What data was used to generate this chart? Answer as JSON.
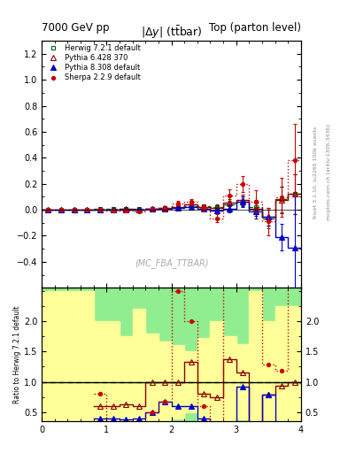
{
  "title_left": "7000 GeV pp",
  "title_right": "Top (parton level)",
  "ylabel_ratio": "Ratio to Herwig 7.2.1 default",
  "main_title": "|\\u0394y| (t\\u0305tbar)",
  "watermark": "(MC_FBA_TTBAR)",
  "right_label": "Rivet 3.1.10, \\u2265 100k events",
  "right_label2": "mcplots.cern.ch [arXiv:1306.3436]",
  "ylim_main": [
    -0.6,
    1.3
  ],
  "ylim_ratio": [
    0.35,
    2.55
  ],
  "xlim": [
    0.0,
    4.0
  ],
  "xticks": [
    0,
    1,
    2,
    3,
    4
  ],
  "yticks_main": [
    -0.4,
    -0.2,
    0.0,
    0.2,
    0.4,
    0.6,
    0.8,
    1.0,
    1.2
  ],
  "yticks_ratio": [
    0.5,
    1.0,
    1.5,
    2.0
  ],
  "bin_edges": [
    0.0,
    0.2,
    0.4,
    0.6,
    0.8,
    1.0,
    1.2,
    1.4,
    1.6,
    1.8,
    2.0,
    2.2,
    2.4,
    2.6,
    2.8,
    3.0,
    3.2,
    3.4,
    3.6,
    3.8,
    4.0
  ],
  "herwig_y": [
    0.002,
    0.001,
    0.001,
    0.001,
    0.005,
    0.005,
    0.008,
    0.005,
    0.01,
    0.015,
    0.02,
    0.03,
    0.025,
    0.02,
    0.04,
    0.065,
    0.02,
    -0.07,
    0.08,
    0.12
  ],
  "herwig_ye": [
    0.004,
    0.003,
    0.003,
    0.003,
    0.005,
    0.005,
    0.006,
    0.006,
    0.008,
    0.01,
    0.012,
    0.015,
    0.018,
    0.02,
    0.03,
    0.04,
    0.055,
    0.07,
    0.1,
    0.15
  ],
  "pythia6_y": [
    0.002,
    0.0,
    0.0,
    0.001,
    0.003,
    0.003,
    0.005,
    0.003,
    0.01,
    0.015,
    0.02,
    0.04,
    0.02,
    0.015,
    0.055,
    0.075,
    0.005,
    -0.055,
    0.075,
    0.12
  ],
  "pythia6_ye": [
    0.004,
    0.003,
    0.003,
    0.003,
    0.005,
    0.005,
    0.006,
    0.006,
    0.008,
    0.01,
    0.012,
    0.015,
    0.018,
    0.02,
    0.03,
    0.04,
    0.055,
    0.07,
    0.1,
    0.15
  ],
  "pythia8_y": [
    0.001,
    0.0,
    -0.001,
    -0.001,
    0.002,
    0.002,
    0.003,
    0.002,
    0.005,
    0.01,
    0.012,
    0.018,
    0.01,
    -0.005,
    0.01,
    0.06,
    -0.01,
    -0.055,
    -0.21,
    -0.29
  ],
  "pythia8_ye": [
    0.004,
    0.003,
    0.003,
    0.003,
    0.005,
    0.005,
    0.006,
    0.006,
    0.008,
    0.01,
    0.012,
    0.015,
    0.018,
    0.02,
    0.03,
    0.04,
    0.055,
    0.07,
    0.1,
    0.4
  ],
  "sherpa_y": [
    0.002,
    -0.001,
    -0.001,
    0.001,
    0.004,
    -0.005,
    -0.005,
    -0.01,
    0.005,
    0.01,
    0.05,
    0.06,
    0.015,
    -0.065,
    0.11,
    0.2,
    0.065,
    -0.09,
    0.095,
    0.38
  ],
  "sherpa_ye": [
    0.006,
    0.005,
    0.005,
    0.005,
    0.007,
    0.007,
    0.009,
    0.009,
    0.012,
    0.015,
    0.018,
    0.022,
    0.027,
    0.03,
    0.045,
    0.06,
    0.082,
    0.105,
    0.15,
    0.28
  ],
  "colors": {
    "herwig": "#006600",
    "pythia6": "#8B0000",
    "pythia8": "#0000CC",
    "sherpa": "#CC0000"
  },
  "bg_green": "#90EE90",
  "bg_yellow": "#FFFF99"
}
